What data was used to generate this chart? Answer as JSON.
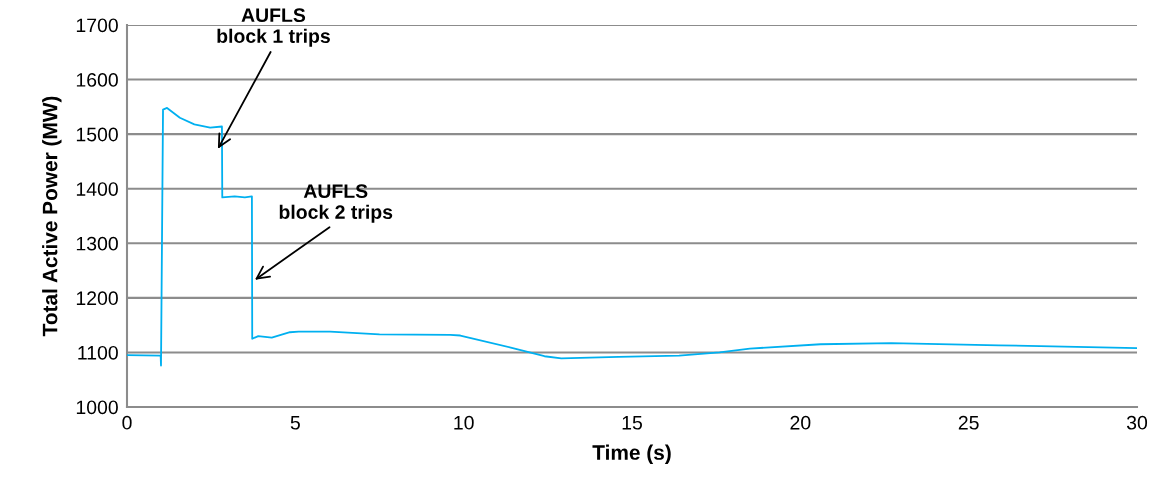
{
  "chart_data": {
    "type": "line",
    "xlabel": "Time (s)",
    "ylabel": "Total Active Power (MW)",
    "xlim": [
      0,
      30
    ],
    "xticks": [
      0,
      5,
      10,
      15,
      20,
      25,
      30
    ],
    "ylim": [
      1000,
      1700
    ],
    "yticks": [
      1000,
      1100,
      1200,
      1300,
      1400,
      1500,
      1600,
      1700
    ],
    "grid": "y",
    "marker": "none",
    "line_style": "solid",
    "series": [
      {
        "color": "#00b0f0",
        "x": [
          0,
          1.0,
          1.01,
          1.07,
          1.19,
          1.57,
          2.0,
          2.47,
          2.82,
          2.83,
          3.2,
          3.5,
          3.71,
          3.72,
          3.9,
          4.3,
          4.84,
          5.1,
          6.03,
          7.5,
          9.6,
          9.9,
          11.4,
          12.4,
          12.9,
          14.6,
          16.4,
          17.6,
          18.5,
          20.6,
          22.7,
          25.9,
          30
        ],
        "values": [
          1095,
          1094,
          1076,
          1545,
          1548,
          1530,
          1518,
          1512,
          1514,
          1384,
          1386,
          1384,
          1386,
          1125,
          1130,
          1127,
          1137,
          1138,
          1138,
          1133,
          1132,
          1131,
          1109,
          1093,
          1089,
          1092,
          1094,
          1100,
          1107,
          1115,
          1117,
          1113,
          1108
        ]
      }
    ],
    "annotations": [
      {
        "text": "AUFLS\nblock 1 trips",
        "x": 2.7,
        "y": 1473
      },
      {
        "text": "AUFLS\nblock 2 trips",
        "x": 3.8,
        "y": 1233
      }
    ]
  }
}
